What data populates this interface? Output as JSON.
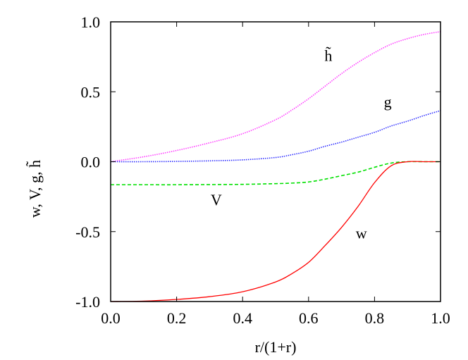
{
  "chart_data": {
    "type": "line",
    "title": "",
    "xlabel": "r/(1+r)",
    "ylabel": "w, V, g, h̃",
    "xlim": [
      0.0,
      1.0
    ],
    "ylim": [
      -1.0,
      1.0
    ],
    "grid": false,
    "legend": "none (inline curve labels)",
    "x_ticks": [
      "0.0",
      "0.2",
      "0.4",
      "0.6",
      "0.8",
      "1.0"
    ],
    "y_ticks": [
      "-1.0",
      "-0.5",
      "0.0",
      "0.5",
      "1.0"
    ],
    "x": [
      0.0,
      0.1,
      0.2,
      0.3,
      0.4,
      0.5,
      0.55,
      0.6,
      0.65,
      0.7,
      0.75,
      0.8,
      0.85,
      0.9,
      0.95,
      1.0
    ],
    "series": [
      {
        "name": "h̃",
        "color": "#ff40ff",
        "style": "dotted",
        "values": [
          0.0,
          0.035,
          0.08,
          0.135,
          0.2,
          0.3,
          0.37,
          0.45,
          0.54,
          0.63,
          0.71,
          0.78,
          0.84,
          0.88,
          0.91,
          0.93
        ]
      },
      {
        "name": "g",
        "color": "#3030ff",
        "style": "dotted",
        "values": [
          0.0,
          0.0,
          0.002,
          0.006,
          0.013,
          0.03,
          0.05,
          0.075,
          0.11,
          0.14,
          0.175,
          0.21,
          0.255,
          0.29,
          0.33,
          0.365
        ]
      },
      {
        "name": "V",
        "color": "#00e000",
        "style": "dashed",
        "values": [
          -0.165,
          -0.165,
          -0.165,
          -0.164,
          -0.162,
          -0.157,
          -0.153,
          -0.145,
          -0.125,
          -0.1,
          -0.075,
          -0.04,
          -0.01,
          0.0,
          0.0,
          0.0
        ]
      },
      {
        "name": "w",
        "color": "#ff0000",
        "style": "solid",
        "values": [
          -1.0,
          -0.997,
          -0.985,
          -0.965,
          -0.93,
          -0.86,
          -0.8,
          -0.72,
          -0.6,
          -0.47,
          -0.32,
          -0.15,
          -0.03,
          0.0,
          0.0,
          0.0
        ]
      }
    ],
    "annotations": [
      {
        "text": "h̃",
        "x": 0.66,
        "y": 0.72
      },
      {
        "text": "g",
        "x": 0.84,
        "y": 0.39
      },
      {
        "text": "V",
        "x": 0.32,
        "y": -0.31
      },
      {
        "text": "w",
        "x": 0.76,
        "y": -0.55
      }
    ]
  }
}
